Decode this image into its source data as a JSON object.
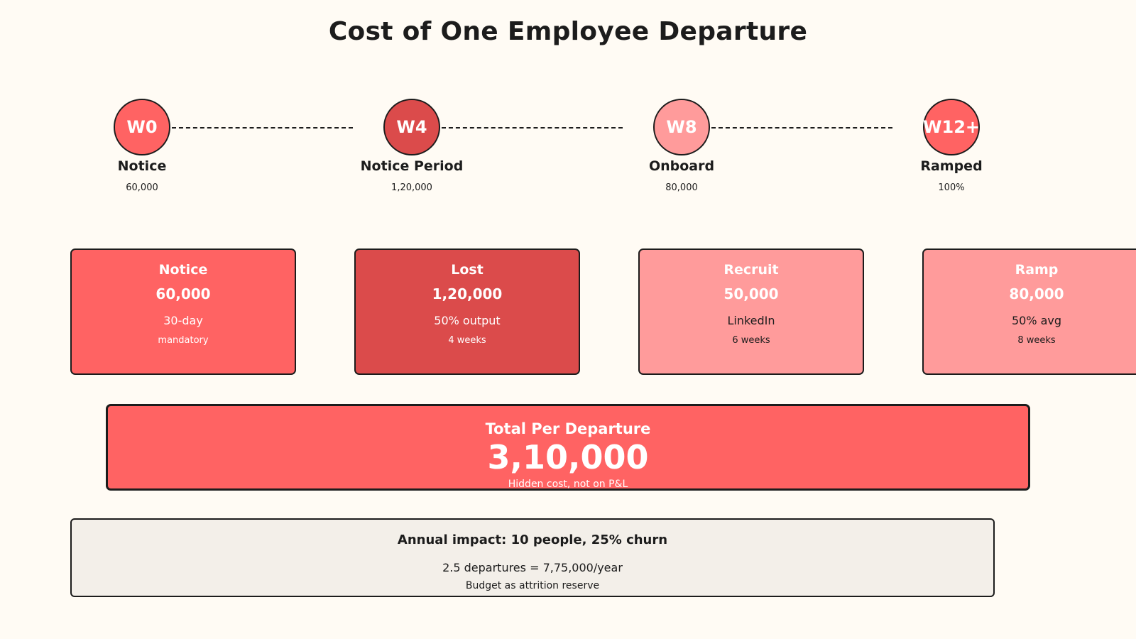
{
  "title": "Cost of One Employee Departure",
  "colors": {
    "background": "#fffbf4",
    "coral": "#ff6363",
    "dark_red": "#db4b4b",
    "light_pink": "#ff9b9b",
    "impact_bg": "#f3efe9",
    "outline": "#1c1c1c"
  },
  "timeline": [
    {
      "code": "W0",
      "label": "Notice",
      "value": "60,000",
      "color": "#ff6363"
    },
    {
      "code": "W4",
      "label": "Notice Period",
      "value": "1,20,000",
      "color": "#db4b4b"
    },
    {
      "code": "W8",
      "label": "Onboard",
      "value": "80,000",
      "color": "#ff9b9b"
    },
    {
      "code": "W12+",
      "label": "Ramped",
      "value": "100%",
      "color": "#ff6363"
    }
  ],
  "cards": [
    {
      "title": "Notice",
      "amount": "60,000",
      "desc": "30-day",
      "note": "mandatory",
      "color": "#ff6363"
    },
    {
      "title": "Lost",
      "amount": "1,20,000",
      "desc": "50% output",
      "note": "4 weeks",
      "color": "#db4b4b"
    },
    {
      "title": "Recruit",
      "amount": "50,000",
      "desc": "LinkedIn",
      "note": "6 weeks",
      "color": "#ff9b9b"
    },
    {
      "title": "Ramp",
      "amount": "80,000",
      "desc": "50% avg",
      "note": "8 weeks",
      "color": "#ff9b9b"
    }
  ],
  "total": {
    "title": "Total Per Departure",
    "amount": "3,10,000",
    "note": "Hidden cost, not on P&L",
    "color": "#ff6363"
  },
  "impact": {
    "title": "Annual impact: 10 people, 25% churn",
    "detail": "2.5 departures = 7,75,000/year",
    "note": "Budget as attrition reserve"
  }
}
